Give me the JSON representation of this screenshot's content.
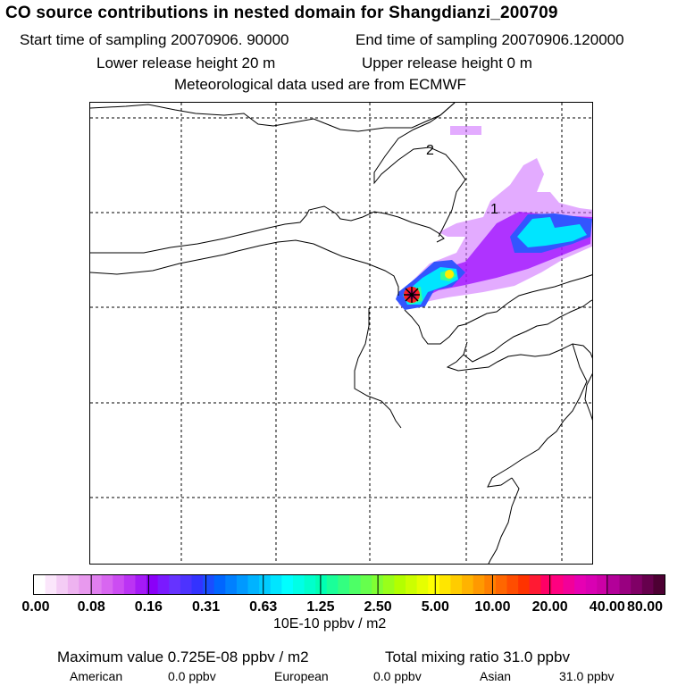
{
  "header": {
    "title": "CO  source contributions in nested domain for Shangdianzi_200709",
    "start_time": "Start time of sampling 20070906. 90000",
    "end_time": "End time of sampling 20070906.120000",
    "lower_height": "Lower release height   20 m",
    "upper_height": "Upper release height    0 m",
    "met_data": "Meteorological data used are from ECMWF"
  },
  "map": {
    "labels": [
      "2",
      "1"
    ],
    "receptor": "Shangdianzi",
    "plume_colors": {
      "outer": "#cc66ff",
      "mid": "#9900ff",
      "blue": "#3355ff",
      "cyan": "#00e5ff",
      "green": "#33ff99",
      "yellow": "#ffee00",
      "red": "#ff2222",
      "magenta": "#cc0066"
    }
  },
  "colorbar": {
    "unit": "10E-10 ppbv / m2",
    "ticks": [
      "0.00",
      "0.08",
      "0.16",
      "0.31",
      "0.63",
      "1.25",
      "2.50",
      "5.00",
      "10.00",
      "20.00",
      "40.00",
      "80.00"
    ],
    "colors": [
      "#ffffff",
      "#fbe6fb",
      "#f4ccf5",
      "#eeb3f0",
      "#e899ee",
      "#e07fef",
      "#d866f0",
      "#cc4cf2",
      "#bb33f4",
      "#a51af6",
      "#8a00f8",
      "#7a1aff",
      "#6633ff",
      "#4d33ff",
      "#3333ff",
      "#1a4dff",
      "#0066ff",
      "#0080ff",
      "#0099ff",
      "#00b3ff",
      "#00ccff",
      "#00e5ff",
      "#00ffff",
      "#00ffe6",
      "#00ffcc",
      "#00ffb3",
      "#1aff99",
      "#33ff80",
      "#4dff66",
      "#66ff4d",
      "#80ff33",
      "#99ff1a",
      "#b3ff00",
      "#ccff00",
      "#e6ff00",
      "#ffff00",
      "#ffe600",
      "#ffcc00",
      "#ffb300",
      "#ff9900",
      "#ff8000",
      "#ff6600",
      "#ff4d00",
      "#ff3300",
      "#ff1a33",
      "#ff0066",
      "#ff0080",
      "#f20099",
      "#e600b3",
      "#d900b3",
      "#cc00a6",
      "#b30099",
      "#990080",
      "#800066",
      "#66004d",
      "#4d0033"
    ]
  },
  "footer": {
    "max_value": "Maximum value  0.725E-08 ppbv / m2",
    "total_mixing": "Total mixing ratio       31.0 ppbv",
    "regions": [
      {
        "name": "American",
        "value": "0.0 ppbv"
      },
      {
        "name": "European",
        "value": "0.0 ppbv"
      },
      {
        "name": "Asian",
        "value": "31.0 ppbv"
      }
    ]
  }
}
